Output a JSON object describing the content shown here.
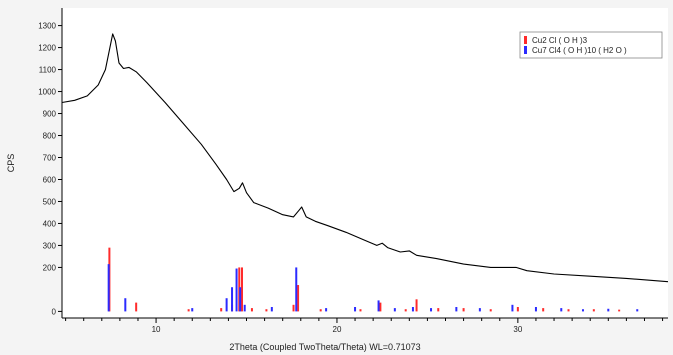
{
  "chart_data": {
    "type": "line",
    "xlabel": "2Theta (Coupled TwoTheta/Theta) WL=0.71073",
    "ylabel": "CPS",
    "xlim": [
      4.8,
      38.3
    ],
    "ylim": [
      -30,
      1380
    ],
    "x_ticks": [
      10,
      20,
      30
    ],
    "y_ticks": [
      0,
      200,
      300,
      400,
      500,
      600,
      700,
      800,
      900,
      1000,
      1100,
      1200,
      1300
    ],
    "grid": false,
    "legend_position": "top-right",
    "pattern": {
      "color": "#000000",
      "points": [
        [
          4.8,
          950
        ],
        [
          5.5,
          960
        ],
        [
          6.2,
          980
        ],
        [
          6.8,
          1030
        ],
        [
          7.2,
          1100
        ],
        [
          7.45,
          1200
        ],
        [
          7.6,
          1262
        ],
        [
          7.75,
          1230
        ],
        [
          7.95,
          1130
        ],
        [
          8.2,
          1105
        ],
        [
          8.5,
          1110
        ],
        [
          8.9,
          1090
        ],
        [
          9.5,
          1040
        ],
        [
          10.5,
          950
        ],
        [
          11.5,
          855
        ],
        [
          12.5,
          760
        ],
        [
          13.3,
          670
        ],
        [
          13.9,
          600
        ],
        [
          14.3,
          545
        ],
        [
          14.6,
          560
        ],
        [
          14.78,
          585
        ],
        [
          15.0,
          540
        ],
        [
          15.4,
          495
        ],
        [
          16.2,
          470
        ],
        [
          17.0,
          440
        ],
        [
          17.6,
          430
        ],
        [
          17.9,
          460
        ],
        [
          18.05,
          475
        ],
        [
          18.3,
          430
        ],
        [
          18.8,
          410
        ],
        [
          19.5,
          390
        ],
        [
          20.5,
          360
        ],
        [
          21.5,
          325
        ],
        [
          22.2,
          300
        ],
        [
          22.5,
          310
        ],
        [
          22.8,
          290
        ],
        [
          23.5,
          270
        ],
        [
          24.0,
          275
        ],
        [
          24.4,
          255
        ],
        [
          25.5,
          240
        ],
        [
          27.0,
          215
        ],
        [
          28.5,
          200
        ],
        [
          29.9,
          200
        ],
        [
          30.5,
          185
        ],
        [
          32.0,
          170
        ],
        [
          34.0,
          160
        ],
        [
          36.0,
          150
        ],
        [
          38.3,
          135
        ]
      ]
    },
    "series": [
      {
        "name": "Cu2 Cl ( O H )3",
        "color": "#ff2b2b",
        "sticks": [
          [
            7.42,
            290
          ],
          [
            8.9,
            40
          ],
          [
            11.8,
            10
          ],
          [
            13.6,
            15
          ],
          [
            14.2,
            30
          ],
          [
            14.6,
            200
          ],
          [
            14.75,
            200
          ],
          [
            15.3,
            15
          ],
          [
            16.1,
            10
          ],
          [
            17.6,
            30
          ],
          [
            17.85,
            120
          ],
          [
            19.1,
            10
          ],
          [
            21.3,
            10
          ],
          [
            22.4,
            40
          ],
          [
            23.8,
            10
          ],
          [
            24.4,
            55
          ],
          [
            25.6,
            15
          ],
          [
            27.0,
            15
          ],
          [
            28.5,
            10
          ],
          [
            30.0,
            20
          ],
          [
            31.4,
            15
          ],
          [
            32.8,
            10
          ],
          [
            34.2,
            10
          ],
          [
            35.6,
            8
          ]
        ]
      },
      {
        "name": "Cu7 Cl4 ( O H )10 ( H2 O )",
        "color": "#2b2bff",
        "sticks": [
          [
            7.38,
            215
          ],
          [
            8.3,
            60
          ],
          [
            12.0,
            15
          ],
          [
            13.9,
            60
          ],
          [
            14.2,
            110
          ],
          [
            14.45,
            195
          ],
          [
            14.65,
            110
          ],
          [
            14.9,
            30
          ],
          [
            16.4,
            20
          ],
          [
            17.75,
            200
          ],
          [
            19.4,
            15
          ],
          [
            21.0,
            20
          ],
          [
            22.3,
            50
          ],
          [
            23.2,
            15
          ],
          [
            24.2,
            20
          ],
          [
            25.2,
            15
          ],
          [
            26.6,
            20
          ],
          [
            27.9,
            15
          ],
          [
            29.7,
            30
          ],
          [
            31.0,
            20
          ],
          [
            32.4,
            15
          ],
          [
            33.6,
            10
          ],
          [
            35.0,
            12
          ],
          [
            36.6,
            10
          ]
        ]
      }
    ]
  }
}
